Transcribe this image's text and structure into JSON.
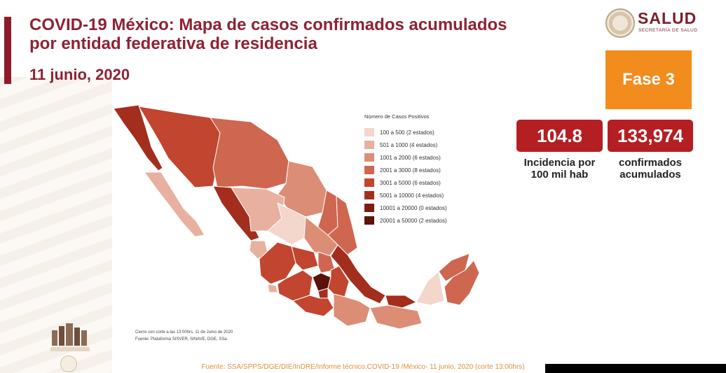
{
  "header": {
    "title_line1": "COVID-19 México: Mapa de casos confirmados acumulados",
    "title_line2": "por entidad federativa de residencia",
    "date": "11 junio, 2020"
  },
  "logo": {
    "name": "SALUD",
    "subtitle": "SECRETARÍA DE SALUD",
    "icon": "eagle-seal-icon"
  },
  "phase": {
    "label": "Fase 3",
    "color": "#f28c1d"
  },
  "stats": {
    "incidence_value": "104.8",
    "incidence_label_line1": "Incidencia por",
    "incidence_label_line2": "100 mil hab",
    "confirmed_value": "133,974",
    "confirmed_label_line1": "confirmados",
    "confirmed_label_line2": "acumulados",
    "box_color": "#b41f23"
  },
  "legend": {
    "title": "Número de Casos Positivos",
    "items": [
      {
        "label": "100 a    500  (2 estados)",
        "color": "#f3d6cc"
      },
      {
        "label": "501 a   1000  (4 estados)",
        "color": "#e8b09f"
      },
      {
        "label": "1001 a  2000  (6 estados)",
        "color": "#dc8d76"
      },
      {
        "label": "2001 a  3000  (8 estados)",
        "color": "#cf6650"
      },
      {
        "label": "3001 a  5000  (6 estados)",
        "color": "#c1452f"
      },
      {
        "label": "5001 a 10000  (4 estados)",
        "color": "#a32e1e"
      },
      {
        "label": "10001 a 20000  (0 estados)",
        "color": "#7d1c10"
      },
      {
        "label": "20001 a 50000  (2 estados)",
        "color": "#5a120a"
      }
    ]
  },
  "map_note": {
    "line1": "Cierre con corte a las 13:00hrs, 11 de Junio de 2020",
    "line2": "Fuente: Plataforma SISVER, SINAVE, DGE, SSa."
  },
  "footer": {
    "source": "Fuente: SSA/SPPS/DGE/DIE/InDRE/Informe técnico.COVID-19 /México- 11 junio, 2020 (corte 13:00hrs)"
  }
}
